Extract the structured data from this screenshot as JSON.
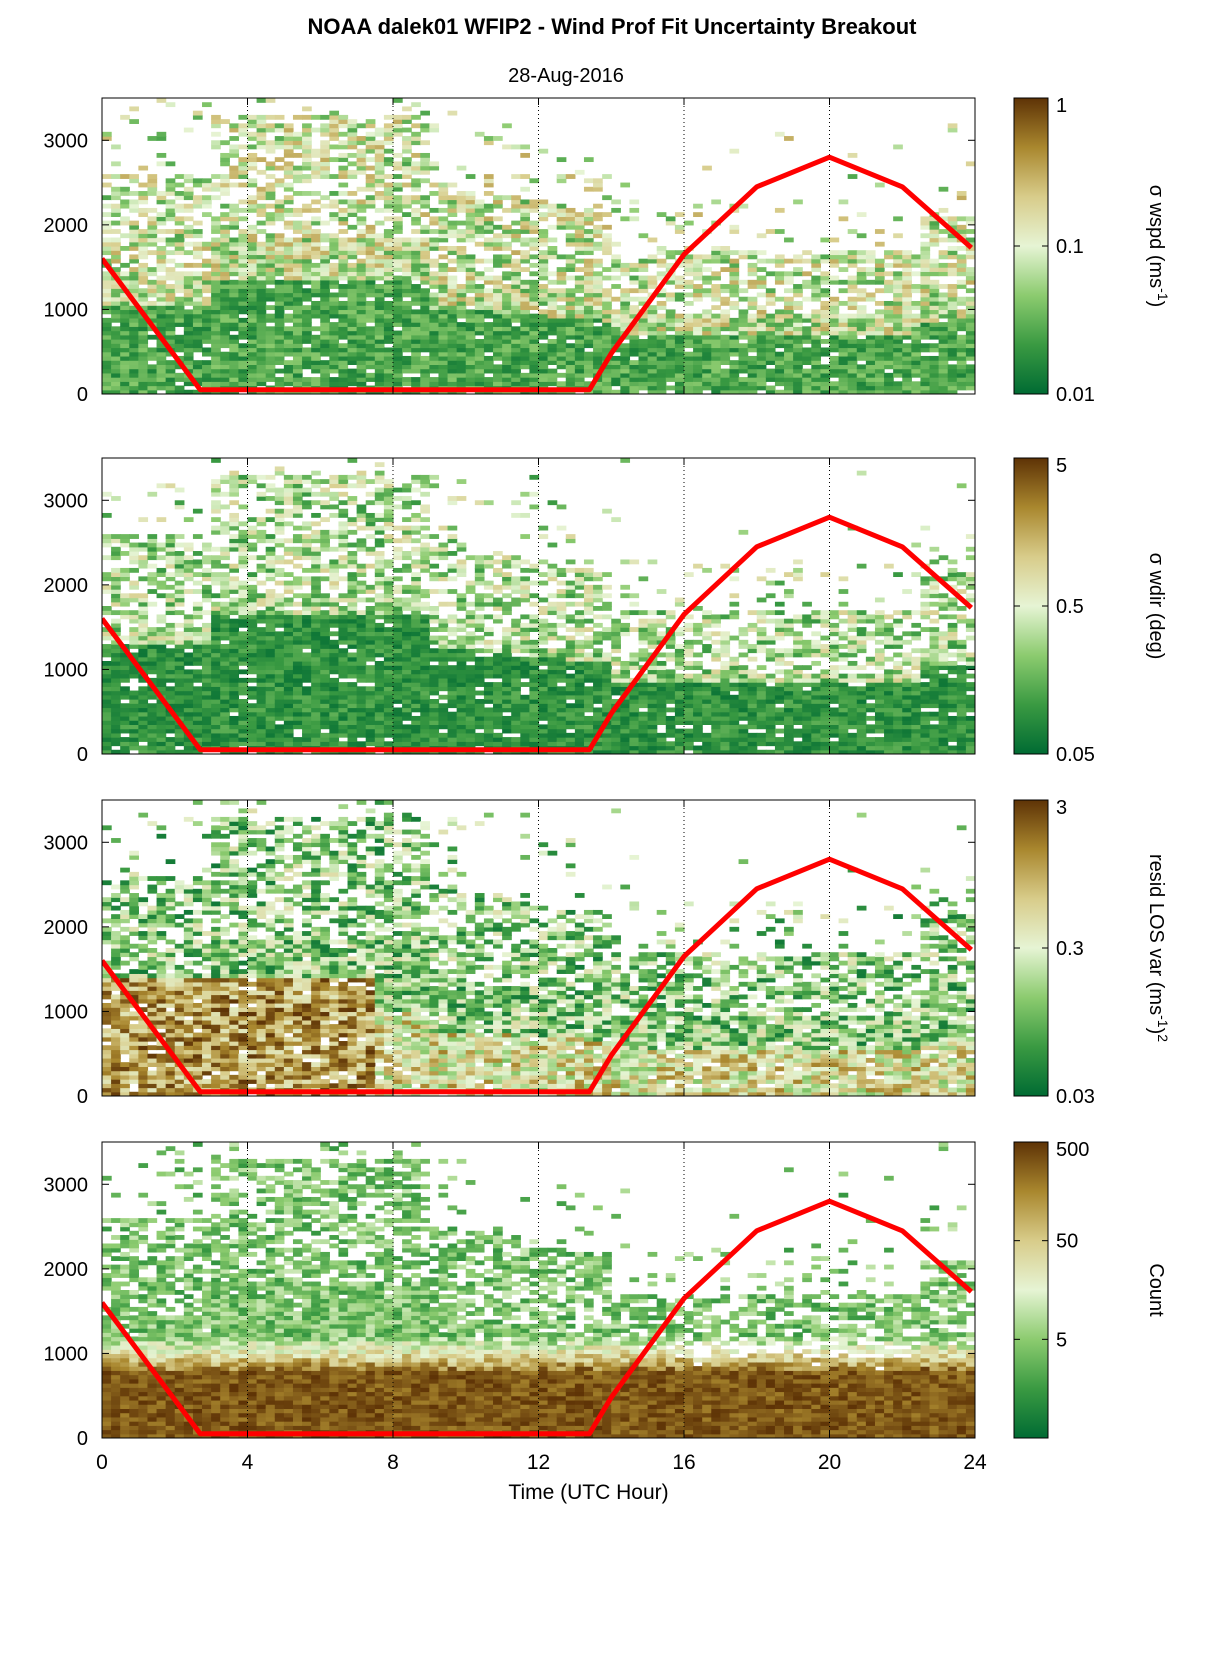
{
  "title": "NOAA dalek01 WFIP2 - Wind Prof Fit Uncertainty Breakout",
  "subtitle": "28-Aug-2016",
  "colors": {
    "scale": [
      "#006b33",
      "#3a9a42",
      "#8ccb6f",
      "#e6f4d4",
      "#d8cc8a",
      "#a9872e",
      "#5e3306"
    ],
    "nightline": "#ff0000",
    "axis": "#000000"
  },
  "chart_data": [
    {
      "type": "heatmap",
      "panel": 1,
      "xlabel": "",
      "ylabel": "",
      "xlim": [
        0,
        24
      ],
      "ylim": [
        0,
        3500
      ],
      "xticks": [
        "0",
        "4",
        "8",
        "12",
        "16",
        "20",
        "24"
      ],
      "yticks": [
        "0",
        "1000",
        "2000",
        "3000"
      ],
      "grid_x": [
        4,
        8,
        12,
        16,
        20
      ],
      "colorbar": {
        "label": "σ wspd (ms",
        "sup": "-1",
        "label_end": ")",
        "scale": "log",
        "ticks": [
          "1",
          "0.1",
          "0.01"
        ],
        "range": [
          0.01,
          1
        ]
      },
      "coverage": {
        "top_early": 2600,
        "top_mid": 3300,
        "top_late": 1700,
        "top_end": 2100
      },
      "line": {
        "x": [
          0,
          2.7,
          13.4,
          14,
          16,
          18,
          20,
          22,
          23.9
        ],
        "y": [
          1600,
          50,
          50,
          480,
          1650,
          2450,
          2800,
          2450,
          1730
        ]
      }
    },
    {
      "type": "heatmap",
      "panel": 2,
      "xlabel": "",
      "ylabel": "",
      "xlim": [
        0,
        24
      ],
      "ylim": [
        0,
        3500
      ],
      "xticks": [
        "0",
        "4",
        "8",
        "12",
        "16",
        "20",
        "24"
      ],
      "yticks": [
        "0",
        "1000",
        "2000",
        "3000"
      ],
      "grid_x": [
        4,
        8,
        12,
        16,
        20
      ],
      "colorbar": {
        "label": "σ wdir (deg)",
        "sup": "",
        "label_end": "",
        "scale": "log",
        "ticks": [
          "5",
          "0.5",
          "0.05"
        ],
        "range": [
          0.05,
          5
        ]
      },
      "coverage": {
        "top_early": 2600,
        "top_mid": 3300,
        "top_late": 1700,
        "top_end": 2100
      },
      "line": {
        "x": [
          0,
          2.7,
          13.4,
          14,
          16,
          18,
          20,
          22,
          23.9
        ],
        "y": [
          1600,
          50,
          50,
          480,
          1650,
          2450,
          2800,
          2450,
          1730
        ]
      }
    },
    {
      "type": "heatmap",
      "panel": 3,
      "xlabel": "",
      "ylabel": "",
      "xlim": [
        0,
        24
      ],
      "ylim": [
        0,
        3500
      ],
      "xticks": [
        "0",
        "4",
        "8",
        "12",
        "16",
        "20",
        "24"
      ],
      "yticks": [
        "0",
        "1000",
        "2000",
        "3000"
      ],
      "grid_x": [
        4,
        8,
        12,
        16,
        20
      ],
      "colorbar": {
        "label": "resid LOS var (ms",
        "sup": "-1",
        "label_end": ")",
        "sup2": "2",
        "scale": "log",
        "ticks": [
          "3",
          "0.3",
          "0.03"
        ],
        "range": [
          0.03,
          3
        ]
      },
      "coverage": {
        "top_early": 2600,
        "top_mid": 3300,
        "top_late": 1700,
        "top_end": 2100
      },
      "line": {
        "x": [
          0,
          2.7,
          13.4,
          14,
          16,
          18,
          20,
          22,
          23.9
        ],
        "y": [
          1600,
          50,
          50,
          480,
          1650,
          2450,
          2800,
          2450,
          1730
        ]
      }
    },
    {
      "type": "heatmap",
      "panel": 4,
      "xlabel": "Time (UTC Hour)",
      "ylabel": "",
      "xlim": [
        0,
        24
      ],
      "ylim": [
        0,
        3500
      ],
      "xticks": [
        "0",
        "4",
        "8",
        "12",
        "16",
        "20",
        "24"
      ],
      "yticks": [
        "0",
        "1000",
        "2000",
        "3000"
      ],
      "grid_x": [
        4,
        8,
        12,
        16,
        20
      ],
      "colorbar": {
        "label": "Count",
        "sup": "",
        "label_end": "",
        "scale": "log",
        "ticks": [
          "500",
          "50",
          "5"
        ],
        "range": [
          0.5,
          500
        ]
      },
      "coverage": {
        "top_early": 2600,
        "top_mid": 3300,
        "top_late": 1700,
        "top_end": 2100
      },
      "line": {
        "x": [
          0,
          2.7,
          13.4,
          14,
          16,
          18,
          20,
          22,
          23.9
        ],
        "y": [
          1600,
          50,
          50,
          480,
          1650,
          2450,
          2800,
          2450,
          1730
        ]
      }
    }
  ]
}
